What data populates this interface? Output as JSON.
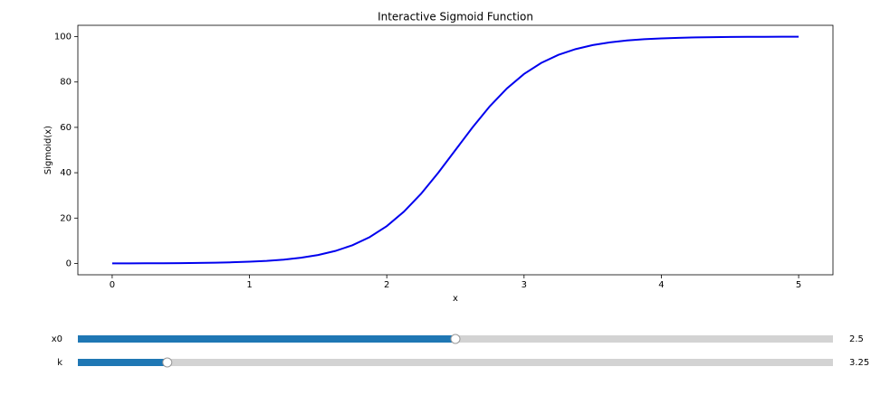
{
  "chart_data": {
    "type": "line",
    "title": "Interactive Sigmoid Function",
    "x_label": "x",
    "y_label": "Sigmoid(x)",
    "x": [
      0,
      0.125,
      0.25,
      0.375,
      0.5,
      0.625,
      0.75,
      0.875,
      1,
      1.125,
      1.25,
      1.375,
      1.5,
      1.625,
      1.75,
      1.875,
      2,
      2.125,
      2.25,
      2.375,
      2.5,
      2.625,
      2.75,
      2.875,
      3,
      3.125,
      3.25,
      3.375,
      3.5,
      3.625,
      3.75,
      3.875,
      4,
      4.125,
      4.25,
      4.375,
      4.5,
      4.625,
      4.75,
      4.875,
      5
    ],
    "series": [
      {
        "name": "sigmoid",
        "color": "#0000ee",
        "values": [
          0.03,
          0.04,
          0.07,
          0.1,
          0.15,
          0.23,
          0.34,
          0.51,
          0.76,
          1.13,
          1.69,
          2.52,
          3.73,
          5.5,
          8.03,
          11.6,
          16.45,
          22.82,
          30.73,
          39.98,
          50,
          60.02,
          69.27,
          77.18,
          83.55,
          88.4,
          91.97,
          94.5,
          96.27,
          97.48,
          98.31,
          98.87,
          99.24,
          99.49,
          99.66,
          99.77,
          99.85,
          99.9,
          99.93,
          99.96,
          99.97
        ]
      }
    ],
    "xlim": [
      -0.25,
      5.25
    ],
    "ylim": [
      -5,
      105
    ],
    "xticks": [
      0,
      1,
      2,
      3,
      4,
      5
    ],
    "yticks": [
      0,
      20,
      40,
      60,
      80,
      100
    ],
    "sliders": [
      {
        "label": "x0",
        "value": 2.5,
        "valmin": 0,
        "valmax": 5,
        "color": "#1f77b4"
      },
      {
        "label": "k",
        "value": 3.25,
        "valmin": 1,
        "valmax": 20,
        "color": "#1f77b4"
      }
    ]
  }
}
